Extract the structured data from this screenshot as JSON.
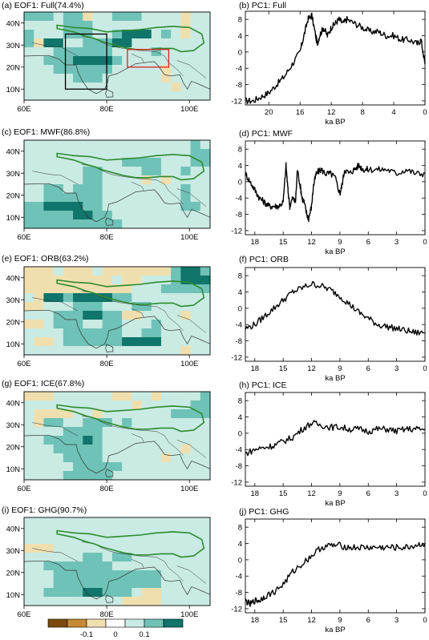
{
  "colors": {
    "dark_brown": "#7a4a0e",
    "brown": "#c58a33",
    "tan": "#f0dfae",
    "white": "#ffffff",
    "pale": "#c9ebe4",
    "teal": "#6fc2b7",
    "dark_teal": "#10756b",
    "plateau_outline": "#2e8b2e",
    "coast": "#333333",
    "region_box": "#000000",
    "region_box_red": "#e02020"
  },
  "maps": [
    {
      "title": "(a) EOF1: Full(74.4%)",
      "lat_ticks": [
        "40N",
        "30N",
        "20N",
        "10N"
      ],
      "lon_ticks": [
        "60E",
        "80E",
        "100E"
      ],
      "grid": [
        "2221220112221111011",
        "1111222111111111011",
        "2111222112333121011",
        "2033112223311111111",
        "1112222221111211111",
        "1122233332111111111",
        "1112222221111101111",
        "1111122211111101111",
        "1111111111111110111",
        "1111111111111111111"
      ]
    },
    {
      "title": "(c) EOF1: MWF(86.8%)",
      "grid": [
        "1111111111111111121",
        "1111111111111111122",
        "1111111111222211122",
        "1111112211112211211",
        "1111112211110101111",
        "1122122211111111211",
        "1122222211111111211",
        "2233332211111111221",
        "2222233221111111111",
        "2222222222111111111"
      ]
    },
    {
      "title": "(e) EOF1: ORB(63.2%)",
      "grid": [
        "0001000100000002332",
        "0000000001001112333",
        "0000000000011122222",
        "1033233332211111111",
        "0011122211122111111",
        "1112223322001111011",
        "0012221122111211111",
        "1111222222112211111",
        "1001222222333311111",
        "1111111111111111011"
      ]
    },
    {
      "title": "(g) EOF1: ICE(67.8%)",
      "grid": [
        "0001111110011011112",
        "1111111111101111122",
        "1000011011111112222",
        "1022112221211111111",
        "1111222211111111111",
        "1122223211111111111",
        "1112222211111111011",
        "1111222211111101111",
        "1111122222111111111",
        "1111222221111111111"
      ]
    },
    {
      "title": "(i) EOF1: GHG(90.7%)",
      "grid": [
        "1111111111111111111",
        "1111111111111111111",
        "1111111111111111111",
        "0001111111111111111",
        "1111112212211111111",
        "1122222221111111111",
        "1112222222222211111",
        "1112222222222211111",
        "1122223322210011111",
        "1111111111000011111"
      ]
    }
  ],
  "colorbar": {
    "labels": [
      "-0.1",
      "0",
      "0.1"
    ]
  },
  "chart_data": [
    {
      "type": "line",
      "title": "(b) PC1: Full",
      "xlabel": "ka BP",
      "x_ticks": [
        20,
        16,
        12,
        8,
        4,
        0
      ],
      "y_ticks": [
        8,
        4,
        0,
        -4,
        -8,
        -12
      ],
      "xlim": [
        23,
        0
      ],
      "ylim": [
        -13,
        10
      ],
      "x": [
        23,
        22,
        21,
        20,
        19,
        18,
        17,
        16,
        15.5,
        15,
        14.5,
        14,
        13.8,
        13.5,
        13,
        12.5,
        12,
        11.5,
        11,
        10.5,
        10,
        9,
        8,
        7,
        6,
        5,
        4,
        3,
        2,
        1,
        0.5,
        0
      ],
      "y": [
        -12,
        -12,
        -11,
        -10,
        -8,
        -6,
        -3,
        0,
        4,
        8,
        9,
        4,
        2,
        4,
        6,
        4,
        6,
        7,
        8,
        7,
        8,
        7,
        6,
        5,
        5,
        4,
        4,
        3,
        3,
        2,
        3,
        -3
      ]
    },
    {
      "type": "line",
      "title": "(d) PC1: MWF",
      "xlabel": "ka BP",
      "x_ticks": [
        18,
        15,
        12,
        9,
        6,
        3,
        0
      ],
      "y_ticks": [
        8,
        4,
        0,
        -4,
        -8,
        -12
      ],
      "xlim": [
        19,
        0
      ],
      "ylim": [
        -13,
        10
      ],
      "x": [
        19,
        18.5,
        18,
        17.5,
        17,
        16.5,
        16,
        15.5,
        15,
        14.7,
        14.5,
        14.3,
        14,
        13.7,
        13.5,
        13.2,
        13,
        12.8,
        12.5,
        12.3,
        12,
        11.8,
        11.5,
        11,
        10.5,
        10,
        9.5,
        9,
        8.8,
        8.5,
        8,
        7.5,
        7,
        6.5,
        6,
        5,
        4,
        3,
        2,
        1,
        0
      ],
      "y": [
        2,
        0,
        -2,
        -4,
        -5,
        -6,
        -6,
        -6,
        -5,
        4,
        -2,
        -6,
        -4,
        -5,
        3,
        -1,
        -4,
        -5,
        -8,
        -9,
        -6,
        -1,
        2,
        3,
        2,
        2,
        1,
        -3,
        -1,
        3,
        2,
        3,
        4,
        3,
        3,
        3,
        3,
        2,
        3,
        2,
        2
      ]
    },
    {
      "type": "line",
      "title": "(f) PC1: ORB",
      "xlabel": "ka BP",
      "x_ticks": [
        18,
        15,
        12,
        9,
        6,
        3,
        0
      ],
      "y_ticks": [
        8,
        4,
        0,
        -4,
        -8,
        -12
      ],
      "xlim": [
        19,
        0
      ],
      "ylim": [
        -13,
        10
      ],
      "x": [
        19,
        18,
        17,
        16,
        15,
        14,
        13,
        12,
        11,
        10,
        9,
        8,
        7,
        6,
        5,
        4,
        3,
        2,
        1,
        0
      ],
      "y": [
        -5,
        -4,
        -2,
        0,
        2,
        4,
        5,
        6,
        5.5,
        4.5,
        3,
        1,
        -1,
        -2.5,
        -4,
        -4.5,
        -5,
        -5.5,
        -6,
        -6
      ]
    },
    {
      "type": "line",
      "title": "(h) PC1: ICE",
      "xlabel": "ka BP",
      "x_ticks": [
        18,
        15,
        12,
        9,
        6,
        3,
        0
      ],
      "y_ticks": [
        8,
        4,
        0,
        -4,
        -8,
        -12
      ],
      "xlim": [
        19,
        0
      ],
      "ylim": [
        -13,
        10
      ],
      "x": [
        19,
        18,
        17,
        16,
        15,
        14,
        13,
        12,
        11,
        10,
        9,
        8,
        7,
        6,
        5,
        4,
        3,
        2,
        1,
        0
      ],
      "y": [
        -5,
        -4,
        -3.5,
        -3,
        -2,
        -1,
        1,
        2.5,
        2,
        1.5,
        1.5,
        1,
        1,
        0.5,
        1,
        1,
        0.5,
        1,
        1,
        1
      ]
    },
    {
      "type": "line",
      "title": "(j) PC1: GHG",
      "xlabel": "ka BP",
      "x_ticks": [
        18,
        15,
        12,
        9,
        6,
        3,
        0
      ],
      "y_ticks": [
        8,
        4,
        0,
        -4,
        -8,
        -12
      ],
      "xlim": [
        19,
        0
      ],
      "ylim": [
        -13,
        10
      ],
      "x": [
        19,
        18.5,
        18,
        17.5,
        17,
        16,
        15,
        14,
        13,
        12,
        11,
        10,
        9,
        8,
        7,
        6,
        5,
        4,
        3,
        2,
        1,
        0
      ],
      "y": [
        -10,
        -11,
        -10,
        -10,
        -9,
        -8,
        -6,
        -3,
        -1,
        1,
        3,
        3.5,
        3.5,
        3,
        3,
        3,
        3,
        3,
        3,
        3,
        3.5,
        4
      ]
    }
  ]
}
